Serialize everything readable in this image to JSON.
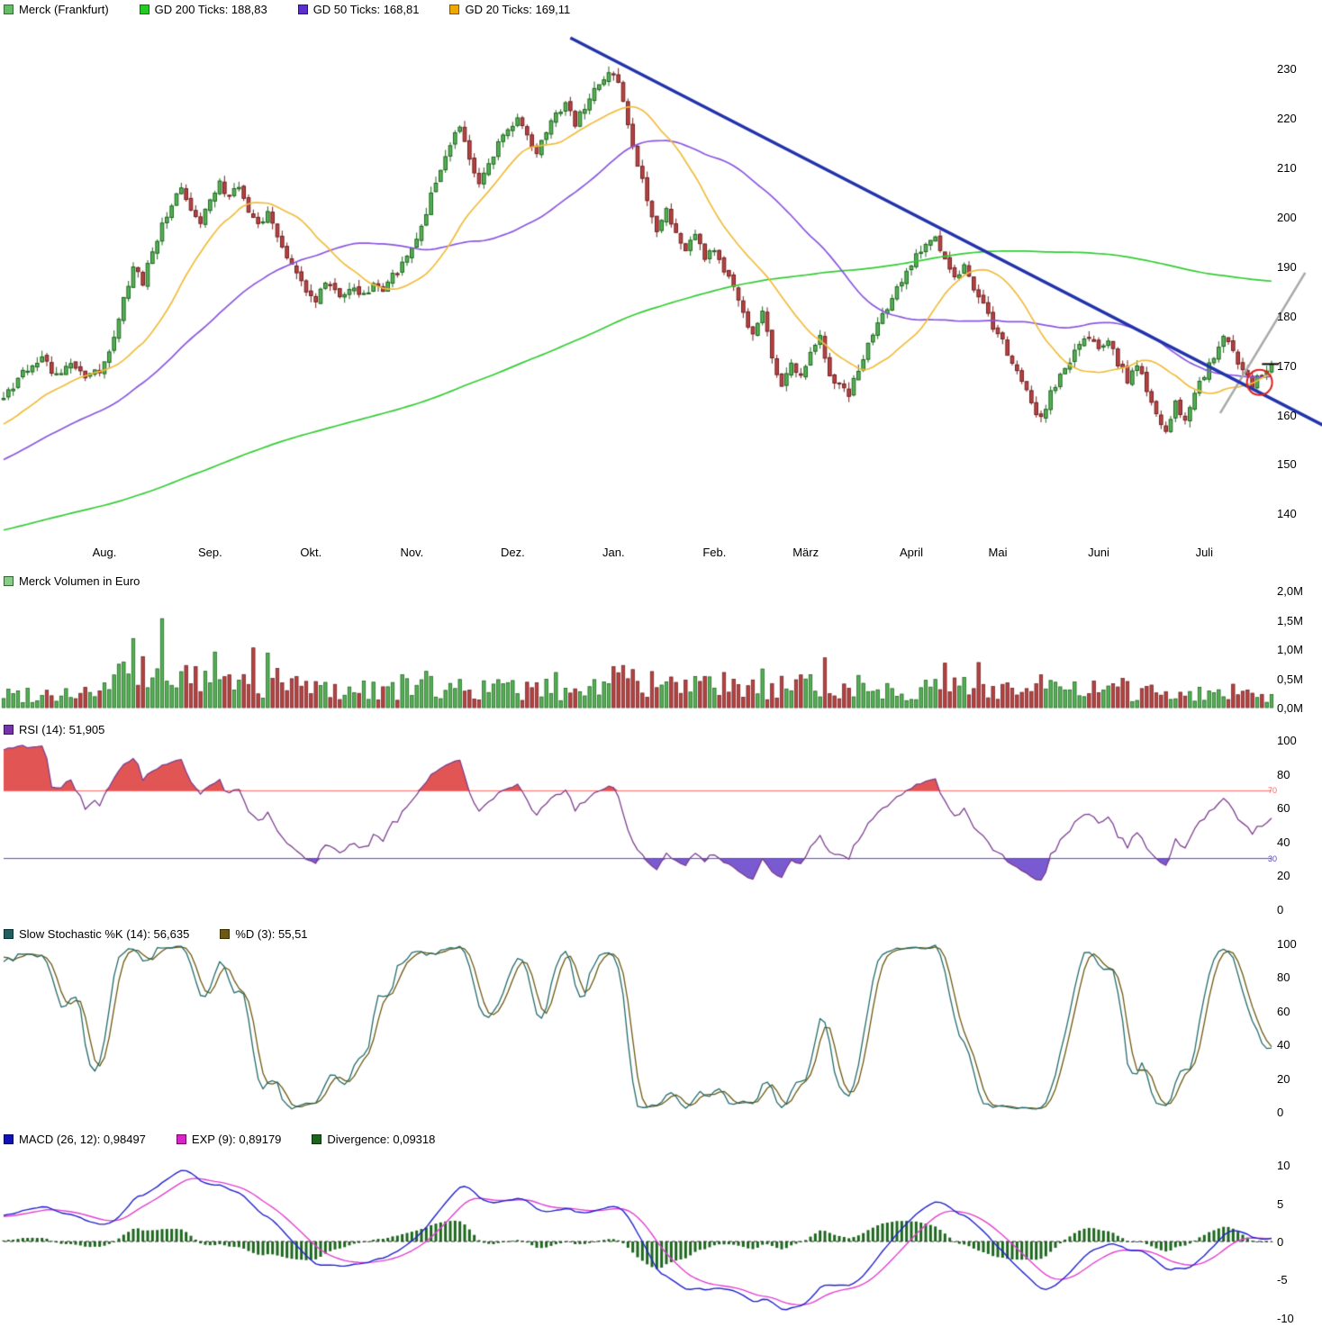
{
  "chart_data": {
    "type": "candlestick-multi-panel-stock-chart",
    "instrument": "Merck (Frankfurt)",
    "x_axis": {
      "domain_days": [
        0,
        264
      ],
      "months": [
        {
          "label": "Aug.",
          "day": 21
        },
        {
          "label": "Sep.",
          "day": 43
        },
        {
          "label": "Okt.",
          "day": 64
        },
        {
          "label": "Nov.",
          "day": 85
        },
        {
          "label": "Dez.",
          "day": 106
        },
        {
          "label": "Jan.",
          "day": 127
        },
        {
          "label": "Feb.",
          "day": 148
        },
        {
          "label": "März",
          "day": 167
        },
        {
          "label": "April",
          "day": 189
        },
        {
          "label": "Mai",
          "day": 207
        },
        {
          "label": "Juni",
          "day": 228
        },
        {
          "label": "Juli",
          "day": 250
        }
      ]
    },
    "panels": [
      {
        "id": "price",
        "legend": [
          {
            "label": "Merck (Frankfurt)",
            "color": "#66bb66",
            "border": "#2f6f2f"
          },
          {
            "label": "GD 200 Ticks: 188,83",
            "color": "#22cc22",
            "border": "#0f6f0f"
          },
          {
            "label": "GD 50 Ticks: 168,81",
            "color": "#5b2fd0",
            "border": "#2a1470"
          },
          {
            "label": "GD 20 Ticks: 169,11",
            "color": "#efa800",
            "border": "#7a5600"
          }
        ],
        "ylim": [
          134.6,
          238.4
        ],
        "yticks": [
          230,
          220,
          210,
          200,
          190,
          180,
          170,
          160,
          150,
          140
        ],
        "close_keyframes": [
          [
            0,
            163.5
          ],
          [
            2,
            166
          ],
          [
            5,
            169.5
          ],
          [
            8,
            171.5
          ],
          [
            11,
            168
          ],
          [
            14,
            170.5
          ],
          [
            17,
            167.5
          ],
          [
            20,
            169
          ],
          [
            23,
            175
          ],
          [
            25,
            183
          ],
          [
            27,
            190
          ],
          [
            29,
            187
          ],
          [
            31,
            193
          ],
          [
            33,
            198
          ],
          [
            35,
            203
          ],
          [
            37,
            206.5
          ],
          [
            39,
            202
          ],
          [
            41,
            199.5
          ],
          [
            43,
            204
          ],
          [
            45,
            206.5
          ],
          [
            47,
            204
          ],
          [
            49,
            206
          ],
          [
            51,
            201.5
          ],
          [
            53,
            198.5
          ],
          [
            55,
            200.5
          ],
          [
            57,
            196
          ],
          [
            59,
            192.5
          ],
          [
            61,
            188
          ],
          [
            63,
            185
          ],
          [
            65,
            183.5
          ],
          [
            67,
            186.5
          ],
          [
            69,
            184.5
          ],
          [
            71,
            183.5
          ],
          [
            73,
            185.5
          ],
          [
            75,
            184
          ],
          [
            77,
            186.5
          ],
          [
            79,
            185
          ],
          [
            81,
            188
          ],
          [
            83,
            190.5
          ],
          [
            85,
            193.5
          ],
          [
            87,
            198
          ],
          [
            89,
            204
          ],
          [
            91,
            209
          ],
          [
            93,
            214
          ],
          [
            95,
            218.5
          ],
          [
            97,
            211
          ],
          [
            99,
            206.5
          ],
          [
            101,
            210
          ],
          [
            103,
            214.5
          ],
          [
            105,
            218
          ],
          [
            107,
            220
          ],
          [
            109,
            216
          ],
          [
            111,
            213.5
          ],
          [
            113,
            217
          ],
          [
            115,
            220.5
          ],
          [
            117,
            222.5
          ],
          [
            119,
            219
          ],
          [
            121,
            222
          ],
          [
            123,
            225.5
          ],
          [
            125,
            228
          ],
          [
            127,
            229.5
          ],
          [
            128,
            227
          ],
          [
            130,
            219
          ],
          [
            132,
            211
          ],
          [
            134,
            203.5
          ],
          [
            136,
            197.5
          ],
          [
            138,
            201
          ],
          [
            140,
            196
          ],
          [
            142,
            193
          ],
          [
            144,
            196.5
          ],
          [
            146,
            192
          ],
          [
            148,
            194
          ],
          [
            150,
            189.5
          ],
          [
            152,
            185.5
          ],
          [
            154,
            180.5
          ],
          [
            156,
            176
          ],
          [
            158,
            180.5
          ],
          [
            160,
            172
          ],
          [
            162,
            165.5
          ],
          [
            164,
            170.5
          ],
          [
            166,
            168
          ],
          [
            168,
            172.5
          ],
          [
            170,
            175.5
          ],
          [
            172,
            168
          ],
          [
            174,
            165.5
          ],
          [
            176,
            164
          ],
          [
            178,
            169
          ],
          [
            180,
            174
          ],
          [
            182,
            178.5
          ],
          [
            184,
            182
          ],
          [
            186,
            185.5
          ],
          [
            188,
            188.5
          ],
          [
            190,
            192
          ],
          [
            192,
            195
          ],
          [
            194,
            196.5
          ],
          [
            196,
            191.5
          ],
          [
            198,
            188
          ],
          [
            200,
            190
          ],
          [
            202,
            185.5
          ],
          [
            204,
            182
          ],
          [
            206,
            178
          ],
          [
            208,
            174.5
          ],
          [
            210,
            170.5
          ],
          [
            212,
            166.5
          ],
          [
            214,
            162
          ],
          [
            216,
            159.5
          ],
          [
            218,
            164
          ],
          [
            220,
            167.5
          ],
          [
            222,
            171
          ],
          [
            224,
            174.5
          ],
          [
            226,
            176
          ],
          [
            228,
            173.5
          ],
          [
            230,
            175.5
          ],
          [
            232,
            170.5
          ],
          [
            234,
            167
          ],
          [
            236,
            170
          ],
          [
            238,
            165
          ],
          [
            240,
            160
          ],
          [
            242,
            157
          ],
          [
            244,
            162.5
          ],
          [
            246,
            158.5
          ],
          [
            248,
            164
          ],
          [
            250,
            168
          ],
          [
            252,
            172
          ],
          [
            254,
            175.5
          ],
          [
            256,
            173
          ],
          [
            258,
            169
          ],
          [
            260,
            165.5
          ],
          [
            262,
            168.5
          ],
          [
            264,
            169.5
          ]
        ],
        "history_keyframes": [
          [
            -210,
            117
          ],
          [
            -160,
            127
          ],
          [
            -110,
            136
          ],
          [
            -60,
            139
          ],
          [
            -50,
            141
          ],
          [
            -30,
            147
          ],
          [
            -20,
            152
          ],
          [
            -10,
            158
          ],
          [
            -1,
            162.5
          ]
        ],
        "moving_averages": [
          {
            "name": "GD 200",
            "window": 200,
            "color": "#33cc33"
          },
          {
            "name": "GD 50",
            "window": 50,
            "color": "#8a56e0"
          },
          {
            "name": "GD 20",
            "window": 20,
            "color": "#f0bc3c"
          }
        ],
        "trendline": {
          "from_day": 118,
          "from_value": 236.2,
          "slope_per_day": -0.5,
          "to_day": 275,
          "color": "#2233aa"
        },
        "gray_line": {
          "points": [
            [
              253.3,
              160.3
            ],
            [
              271,
              188.7
            ]
          ],
          "color": "#a8a8a8"
        },
        "highlight_circle": {
          "day": 261.5,
          "value": 166.5,
          "radius_px": 14,
          "color": "#dd2222"
        },
        "candle_colors": {
          "up_fill": "#55b355",
          "up_edge": "#1d641d",
          "down_fill": "#b94343",
          "down_edge": "#6e1f1f"
        }
      },
      {
        "id": "volume",
        "legend": [
          {
            "label": "Merck Volumen in Euro",
            "color": "#88cc88",
            "border": "#336633"
          }
        ],
        "ylim": [
          0,
          2.0
        ],
        "yticks": [
          "2,0M",
          "1,5M",
          "1,0M",
          "0,5M",
          "0,0M"
        ],
        "ytick_values": [
          2.0,
          1.5,
          1.0,
          0.5,
          0.0
        ],
        "unit": "Euro",
        "base_keyframes": [
          [
            0,
            0.32
          ],
          [
            20,
            0.38
          ],
          [
            26,
            0.8
          ],
          [
            34,
            0.75
          ],
          [
            44,
            0.6
          ],
          [
            56,
            0.6
          ],
          [
            70,
            0.42
          ],
          [
            85,
            0.5
          ],
          [
            100,
            0.45
          ],
          [
            115,
            0.42
          ],
          [
            127,
            0.6
          ],
          [
            140,
            0.5
          ],
          [
            155,
            0.45
          ],
          [
            170,
            0.5
          ],
          [
            185,
            0.42
          ],
          [
            200,
            0.5
          ],
          [
            215,
            0.45
          ],
          [
            228,
            0.4
          ],
          [
            242,
            0.38
          ],
          [
            255,
            0.35
          ],
          [
            264,
            0.3
          ]
        ],
        "spikes": {
          "25": 0.78,
          "27": 1.18,
          "33": 1.52,
          "38": 0.72,
          "44": 0.95,
          "52": 1.02,
          "55": 0.93,
          "88": 0.62,
          "115": 0.6,
          "127": 0.7,
          "129": 0.72,
          "131": 0.65,
          "150": 0.6,
          "158": 0.66,
          "171": 0.85,
          "178": 0.55,
          "196": 0.76,
          "203": 0.77,
          "216": 0.56,
          "233": 0.5,
          "256": 0.4
        }
      },
      {
        "id": "rsi",
        "legend": [
          {
            "label": "RSI (14): 51,905",
            "color": "#7733aa",
            "border": "#441166"
          }
        ],
        "ylim": [
          0,
          100
        ],
        "yticks": [
          100,
          80,
          60,
          40,
          20,
          0
        ],
        "period": 14,
        "line_color": "#7d3f8f",
        "overbought": {
          "value": 70,
          "label": "70",
          "line_color": "#ff6666",
          "fill": "#e25555"
        },
        "oversold": {
          "value": 30,
          "label": "30",
          "line_color": "#5544cc",
          "fill": "#7a5ad0"
        }
      },
      {
        "id": "stochastic",
        "legend": [
          {
            "label": "Slow Stochastic %K (14): 56,635",
            "color": "#1f5f5f",
            "border": "#0c3333"
          },
          {
            "label": "%D (3): 55,51",
            "color": "#6b5a10",
            "border": "#3a3008"
          }
        ],
        "ylim": [
          0,
          100
        ],
        "yticks": [
          100,
          80,
          60,
          40,
          20,
          0
        ],
        "k_period": 14,
        "d_period": 3,
        "k_color": "#246b6b",
        "d_color": "#6b5a10"
      },
      {
        "id": "macd",
        "legend": [
          {
            "label": "MACD (26, 12): 0,98497",
            "color": "#1111bb",
            "border": "#000066"
          },
          {
            "label": "EXP (9): 0,89179",
            "color": "#dd22cc",
            "border": "#770766"
          },
          {
            "label": "Divergence: 0,09318",
            "color": "#1a661a",
            "border": "#0c330c"
          }
        ],
        "ylim": [
          -10.5,
          10.5
        ],
        "yticks": [
          10,
          5,
          0,
          -5,
          -10
        ],
        "fast": 12,
        "slow": 26,
        "signal": 9,
        "macd_color": "#2222cc",
        "signal_color": "#e040d0",
        "hist_color": "#1d661d"
      }
    ]
  }
}
